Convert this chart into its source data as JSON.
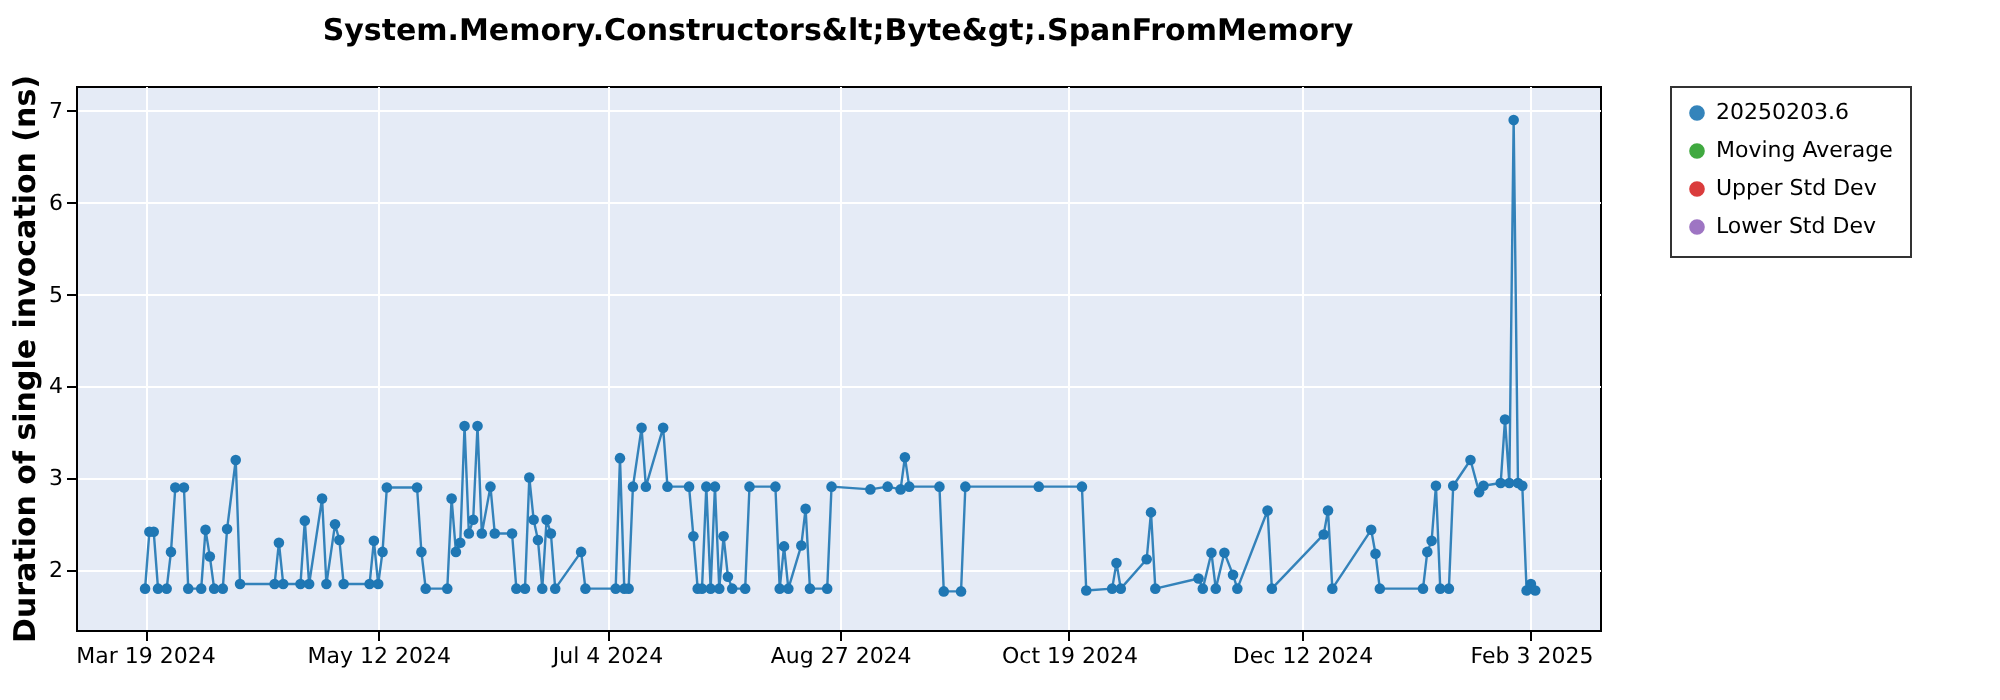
{
  "chart_data": {
    "type": "line",
    "title": "System.Memory.Constructors&lt;Byte&gt;.SpanFromMemory",
    "ylabel": "Duration of single invocation (ns)",
    "x": [
      "2024-03-19",
      "2024-03-20",
      "2024-03-21",
      "2024-03-22",
      "2024-03-24",
      "2024-03-25",
      "2024-03-26",
      "2024-03-28",
      "2024-03-29",
      "2024-04-01",
      "2024-04-02",
      "2024-04-03",
      "2024-04-04",
      "2024-04-06",
      "2024-04-07",
      "2024-04-09",
      "2024-04-10",
      "2024-04-18",
      "2024-04-19",
      "2024-04-20",
      "2024-04-24",
      "2024-04-25",
      "2024-04-26",
      "2024-04-29",
      "2024-04-30",
      "2024-05-02",
      "2024-05-03",
      "2024-05-04",
      "2024-05-10",
      "2024-05-11",
      "2024-05-12",
      "2024-05-13",
      "2024-05-14",
      "2024-05-21",
      "2024-05-22",
      "2024-05-23",
      "2024-05-28",
      "2024-05-29",
      "2024-05-30",
      "2024-05-31",
      "2024-06-01",
      "2024-06-02",
      "2024-06-03",
      "2024-06-04",
      "2024-06-05",
      "2024-06-07",
      "2024-06-08",
      "2024-06-12",
      "2024-06-13",
      "2024-06-15",
      "2024-06-16",
      "2024-06-17",
      "2024-06-18",
      "2024-06-19",
      "2024-06-20",
      "2024-06-21",
      "2024-06-22",
      "2024-06-28",
      "2024-06-29",
      "2024-07-06",
      "2024-07-07",
      "2024-07-08",
      "2024-07-09",
      "2024-07-10",
      "2024-07-12",
      "2024-07-13",
      "2024-07-17",
      "2024-07-18",
      "2024-07-23",
      "2024-07-24",
      "2024-07-25",
      "2024-07-26",
      "2024-07-27",
      "2024-07-28",
      "2024-07-29",
      "2024-07-30",
      "2024-07-31",
      "2024-08-01",
      "2024-08-02",
      "2024-08-05",
      "2024-08-06",
      "2024-08-12",
      "2024-08-13",
      "2024-08-14",
      "2024-08-15",
      "2024-08-18",
      "2024-08-19",
      "2024-08-20",
      "2024-08-24",
      "2024-08-25",
      "2024-09-03",
      "2024-09-07",
      "2024-09-10",
      "2024-09-11",
      "2024-09-12",
      "2024-09-19",
      "2024-09-20",
      "2024-09-24",
      "2024-09-25",
      "2024-10-12",
      "2024-10-22",
      "2024-10-23",
      "2024-10-29",
      "2024-10-30",
      "2024-10-31",
      "2024-11-06",
      "2024-11-07",
      "2024-11-08",
      "2024-11-18",
      "2024-11-19",
      "2024-11-21",
      "2024-11-22",
      "2024-11-24",
      "2024-11-26",
      "2024-11-27",
      "2024-12-04",
      "2024-12-05",
      "2024-12-17",
      "2024-12-18",
      "2024-12-19",
      "2024-12-28",
      "2024-12-29",
      "2024-12-30",
      "2025-01-09",
      "2025-01-10",
      "2025-01-11",
      "2025-01-12",
      "2025-01-13",
      "2025-01-15",
      "2025-01-16",
      "2025-01-20",
      "2025-01-22",
      "2025-01-23",
      "2025-01-27",
      "2025-01-28",
      "2025-01-29",
      "2025-01-30",
      "2025-01-31",
      "2025-02-01",
      "2025-02-02",
      "2025-02-03",
      "2025-02-04"
    ],
    "series": [
      {
        "name": "20250203.6",
        "color": "#1f77b4",
        "values": [
          1.8,
          2.42,
          2.42,
          1.8,
          1.8,
          2.2,
          2.9,
          2.9,
          1.8,
          1.8,
          2.44,
          2.15,
          1.8,
          1.8,
          2.45,
          3.2,
          1.85,
          1.85,
          2.3,
          1.85,
          1.85,
          2.54,
          1.85,
          2.78,
          1.85,
          2.5,
          2.33,
          1.85,
          1.85,
          2.32,
          1.85,
          2.2,
          2.9,
          2.9,
          2.2,
          1.8,
          1.8,
          2.78,
          2.2,
          2.3,
          3.57,
          2.4,
          2.55,
          3.57,
          2.4,
          2.91,
          2.4,
          2.4,
          1.8,
          1.8,
          3.01,
          2.55,
          2.33,
          1.8,
          2.55,
          2.4,
          1.8,
          2.2,
          1.8,
          1.8,
          3.22,
          1.8,
          1.8,
          2.91,
          3.55,
          2.91,
          3.55,
          2.91,
          2.91,
          2.37,
          1.8,
          1.8,
          2.91,
          1.8,
          2.91,
          1.8,
          2.37,
          1.93,
          1.8,
          1.8,
          2.91,
          2.91,
          1.8,
          2.26,
          1.8,
          2.27,
          2.67,
          1.8,
          1.8,
          2.91,
          2.88,
          2.91,
          2.88,
          3.23,
          2.91,
          2.91,
          1.77,
          1.77,
          2.91,
          2.91,
          2.91,
          1.78,
          1.8,
          2.08,
          1.8,
          2.12,
          2.63,
          1.8,
          1.91,
          1.8,
          2.19,
          1.8,
          2.19,
          1.95,
          1.8,
          2.65,
          1.8,
          2.39,
          2.65,
          1.8,
          2.44,
          2.18,
          1.8,
          1.8,
          2.2,
          2.32,
          2.92,
          1.8,
          1.8,
          2.92,
          3.2,
          2.85,
          2.92,
          2.95,
          3.64,
          2.95,
          6.9,
          2.95,
          2.92,
          1.78,
          1.85,
          1.78
        ]
      },
      {
        "name": "Moving Average",
        "color": "#2ca02c",
        "values": [
          null,
          null,
          null,
          null,
          null,
          null,
          null,
          null,
          null,
          null,
          null,
          null,
          null,
          null,
          null,
          null,
          null,
          null,
          null,
          null,
          null,
          null,
          null,
          null,
          null,
          null,
          null,
          null,
          null,
          null,
          null,
          null,
          null,
          null,
          null,
          null,
          null,
          null,
          null,
          null,
          null,
          null,
          null,
          null,
          null,
          null,
          null,
          null,
          null,
          null,
          null,
          null,
          null,
          null,
          null,
          null,
          null,
          null,
          null,
          null,
          null,
          null,
          null,
          null,
          null,
          null,
          null,
          null,
          null,
          null,
          null,
          null,
          null,
          null,
          null,
          null,
          null,
          null,
          null,
          null,
          null,
          null,
          null,
          null,
          null,
          null,
          null,
          null,
          null,
          null,
          null,
          null,
          null,
          null,
          null,
          null,
          null,
          null,
          null,
          null,
          null,
          null,
          null,
          null,
          null,
          null,
          null,
          null,
          null,
          null,
          null,
          null,
          null,
          null,
          null,
          null,
          null,
          null,
          null,
          null,
          null,
          null,
          null,
          null,
          null,
          null,
          null,
          null,
          null,
          null,
          null,
          null,
          null,
          null,
          null,
          null,
          null,
          null,
          null,
          null,
          null,
          null
        ]
      },
      {
        "name": "Upper Std Dev",
        "color": "#d62728",
        "values": [
          null,
          null,
          null,
          null,
          null,
          null,
          null,
          null,
          null,
          null,
          null,
          null,
          null,
          null,
          null,
          null,
          null,
          null,
          null,
          null,
          null,
          null,
          null,
          null,
          null,
          null,
          null,
          null,
          null,
          null,
          null,
          null,
          null,
          null,
          null,
          null,
          null,
          null,
          null,
          null,
          null,
          null,
          null,
          null,
          null,
          null,
          null,
          null,
          null,
          null,
          null,
          null,
          null,
          null,
          null,
          null,
          null,
          null,
          null,
          null,
          null,
          null,
          null,
          null,
          null,
          null,
          null,
          null,
          null,
          null,
          null,
          null,
          null,
          null,
          null,
          null,
          null,
          null,
          null,
          null,
          null,
          null,
          null,
          null,
          null,
          null,
          null,
          null,
          null,
          null,
          null,
          null,
          null,
          null,
          null,
          null,
          null,
          null,
          null,
          null,
          null,
          null,
          null,
          null,
          null,
          null,
          null,
          null,
          null,
          null,
          null,
          null,
          null,
          null,
          null,
          null,
          null,
          null,
          null,
          null,
          null,
          null,
          null,
          null,
          null,
          null,
          null,
          null,
          null,
          null,
          null,
          null,
          null,
          null,
          null,
          null,
          null,
          null,
          null,
          null,
          null,
          null
        ]
      },
      {
        "name": "Lower Std Dev",
        "color": "#9467bd",
        "values": [
          null,
          null,
          null,
          null,
          null,
          null,
          null,
          null,
          null,
          null,
          null,
          null,
          null,
          null,
          null,
          null,
          null,
          null,
          null,
          null,
          null,
          null,
          null,
          null,
          null,
          null,
          null,
          null,
          null,
          null,
          null,
          null,
          null,
          null,
          null,
          null,
          null,
          null,
          null,
          null,
          null,
          null,
          null,
          null,
          null,
          null,
          null,
          null,
          null,
          null,
          null,
          null,
          null,
          null,
          null,
          null,
          null,
          null,
          null,
          null,
          null,
          null,
          null,
          null,
          null,
          null,
          null,
          null,
          null,
          null,
          null,
          null,
          null,
          null,
          null,
          null,
          null,
          null,
          null,
          null,
          null,
          null,
          null,
          null,
          null,
          null,
          null,
          null,
          null,
          null,
          null,
          null,
          null,
          null,
          null,
          null,
          null,
          null,
          null,
          null,
          null,
          null,
          null,
          null,
          null,
          null,
          null,
          null,
          null,
          null,
          null,
          null,
          null,
          null,
          null,
          null,
          null,
          null,
          null,
          null,
          null,
          null,
          null,
          null,
          null,
          null,
          null,
          null,
          null,
          null,
          null,
          null,
          null,
          null,
          null,
          null,
          null,
          null,
          null,
          null,
          null,
          null
        ]
      }
    ],
    "xlim": [
      "2024-03-03",
      "2025-02-19"
    ],
    "xticks": [
      {
        "value": "2024-03-19",
        "label": "Mar 19 2024"
      },
      {
        "value": "2024-05-12",
        "label": "May 12 2024"
      },
      {
        "value": "2024-07-04",
        "label": "Jul 4 2024"
      },
      {
        "value": "2024-08-27",
        "label": "Aug 27 2024"
      },
      {
        "value": "2024-10-19",
        "label": "Oct 19 2024"
      },
      {
        "value": "2024-12-12",
        "label": "Dec 12 2024"
      },
      {
        "value": "2025-02-03",
        "label": "Feb 3 2025"
      }
    ],
    "ylim": [
      1.35,
      7.27
    ],
    "yticks": [
      2,
      3,
      4,
      5,
      6,
      7
    ],
    "grid": true,
    "legend": "right",
    "marker": "circle"
  }
}
